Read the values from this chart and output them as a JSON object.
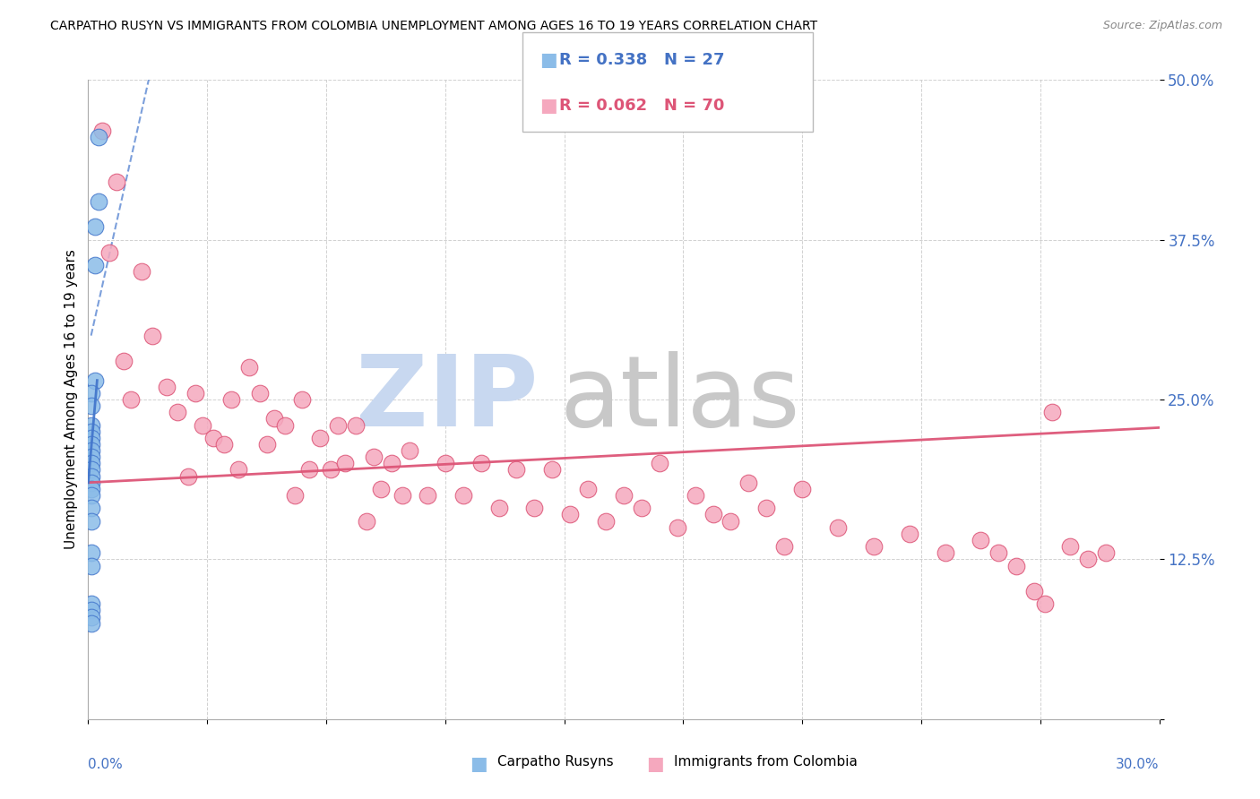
{
  "title": "CARPATHO RUSYN VS IMMIGRANTS FROM COLOMBIA UNEMPLOYMENT AMONG AGES 16 TO 19 YEARS CORRELATION CHART",
  "source": "Source: ZipAtlas.com",
  "ylabel_label": "Unemployment Among Ages 16 to 19 years",
  "xmin": 0.0,
  "xmax": 0.3,
  "ymin": 0.0,
  "ymax": 0.5,
  "blue_R": 0.338,
  "blue_N": 27,
  "pink_R": 0.062,
  "pink_N": 70,
  "blue_label": "Carpatho Rusyns",
  "pink_label": "Immigrants from Colombia",
  "blue_color": "#8BBCE8",
  "pink_color": "#F5A8BE",
  "blue_trend_color": "#4477CC",
  "pink_trend_color": "#DD5577",
  "watermark_zip_color": "#C8D8EC",
  "watermark_atlas_color": "#C8C8C8",
  "blue_scatter_x": [
    0.003,
    0.003,
    0.002,
    0.002,
    0.002,
    0.001,
    0.001,
    0.001,
    0.001,
    0.001,
    0.001,
    0.001,
    0.001,
    0.001,
    0.001,
    0.001,
    0.001,
    0.001,
    0.001,
    0.001,
    0.001,
    0.001,
    0.001,
    0.001,
    0.001,
    0.001,
    0.001
  ],
  "blue_scatter_y": [
    0.455,
    0.405,
    0.385,
    0.355,
    0.265,
    0.255,
    0.245,
    0.23,
    0.225,
    0.22,
    0.215,
    0.21,
    0.205,
    0.2,
    0.195,
    0.19,
    0.185,
    0.18,
    0.175,
    0.165,
    0.155,
    0.13,
    0.12,
    0.09,
    0.085,
    0.08,
    0.075
  ],
  "pink_scatter_x": [
    0.004,
    0.006,
    0.008,
    0.01,
    0.012,
    0.015,
    0.018,
    0.022,
    0.025,
    0.028,
    0.03,
    0.032,
    0.035,
    0.038,
    0.04,
    0.042,
    0.045,
    0.048,
    0.05,
    0.052,
    0.055,
    0.058,
    0.06,
    0.062,
    0.065,
    0.068,
    0.07,
    0.072,
    0.075,
    0.078,
    0.08,
    0.082,
    0.085,
    0.088,
    0.09,
    0.095,
    0.1,
    0.105,
    0.11,
    0.115,
    0.12,
    0.125,
    0.13,
    0.135,
    0.14,
    0.145,
    0.15,
    0.155,
    0.16,
    0.165,
    0.17,
    0.175,
    0.18,
    0.185,
    0.19,
    0.195,
    0.2,
    0.21,
    0.22,
    0.23,
    0.24,
    0.25,
    0.255,
    0.26,
    0.265,
    0.268,
    0.27,
    0.275,
    0.28,
    0.285
  ],
  "pink_scatter_y": [
    0.46,
    0.365,
    0.42,
    0.28,
    0.25,
    0.35,
    0.3,
    0.26,
    0.24,
    0.19,
    0.255,
    0.23,
    0.22,
    0.215,
    0.25,
    0.195,
    0.275,
    0.255,
    0.215,
    0.235,
    0.23,
    0.175,
    0.25,
    0.195,
    0.22,
    0.195,
    0.23,
    0.2,
    0.23,
    0.155,
    0.205,
    0.18,
    0.2,
    0.175,
    0.21,
    0.175,
    0.2,
    0.175,
    0.2,
    0.165,
    0.195,
    0.165,
    0.195,
    0.16,
    0.18,
    0.155,
    0.175,
    0.165,
    0.2,
    0.15,
    0.175,
    0.16,
    0.155,
    0.185,
    0.165,
    0.135,
    0.18,
    0.15,
    0.135,
    0.145,
    0.13,
    0.14,
    0.13,
    0.12,
    0.1,
    0.09,
    0.24,
    0.135,
    0.125,
    0.13
  ]
}
